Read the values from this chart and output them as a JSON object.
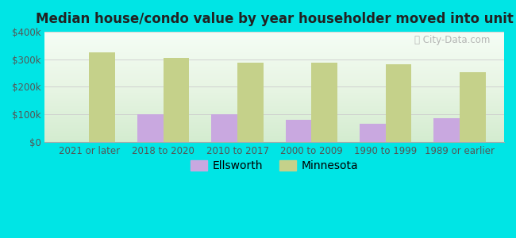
{
  "title": "Median house/condo value by year householder moved into unit",
  "categories": [
    "2021 or later",
    "2018 to 2020",
    "2010 to 2017",
    "2000 to 2009",
    "1990 to 1999",
    "1989 or earlier"
  ],
  "ellsworth_values": [
    null,
    100000,
    100000,
    80000,
    67000,
    85000
  ],
  "minnesota_values": [
    325000,
    305000,
    288000,
    288000,
    283000,
    253000
  ],
  "ellsworth_color": "#c9a8e0",
  "minnesota_color": "#c5d18a",
  "background_color": "#00e5e5",
  "plot_bg_color": "#edf7ec",
  "ylim": [
    0,
    400000
  ],
  "yticks": [
    0,
    100000,
    200000,
    300000,
    400000
  ],
  "ytick_labels": [
    "$0",
    "$100k",
    "$200k",
    "$300k",
    "$400k"
  ],
  "watermark": "City-Data.com",
  "bar_width": 0.35,
  "title_fontsize": 12,
  "tick_fontsize": 8.5
}
